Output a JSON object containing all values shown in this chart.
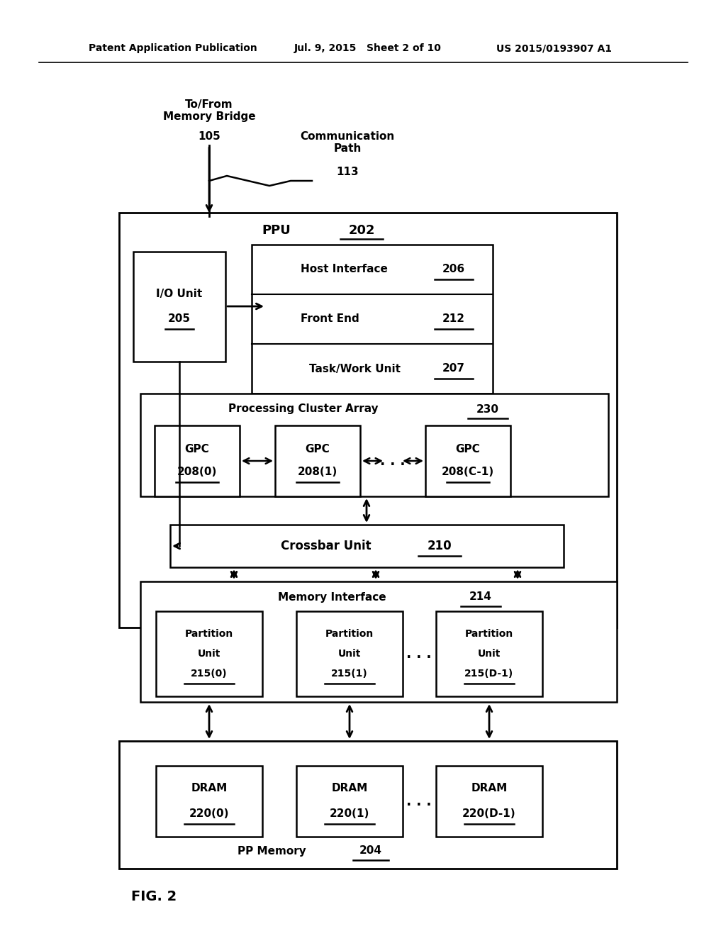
{
  "bg_color": "#ffffff",
  "header_left": "Patent Application Publication",
  "header_mid": "Jul. 9, 2015   Sheet 2 of 10",
  "header_right": "US 2015/0193907 A1",
  "fig_label": "FIG. 2",
  "to_from_text": "To/From\nMemory Bridge",
  "ref_105": "105",
  "comm_path_text": "Communication\nPath",
  "ref_113": "113",
  "ppu_label": "PPU",
  "ref_202": "202",
  "io_unit_line1": "I/O Unit",
  "io_unit_line2": "205",
  "host_iface_text": "Host Interface",
  "ref_206": "206",
  "front_end_text": "Front End",
  "ref_212": "212",
  "task_work_text": "Task/Work Unit",
  "ref_207": "207",
  "pca_label": "Processing Cluster Array",
  "ref_230": "230",
  "gpc0_line1": "GPC",
  "gpc0_line2": "208(0)",
  "gpc1_line1": "GPC",
  "gpc1_line2": "208(1)",
  "gpcC_line1": "GPC",
  "gpcC_line2": "208(C-1)",
  "crossbar_text": "Crossbar Unit",
  "ref_210": "210",
  "mi_label": "Memory Interface",
  "ref_214": "214",
  "part0_line1": "Partition",
  "part0_line2": "Unit",
  "part0_line3": "215(0)",
  "part1_line1": "Partition",
  "part1_line2": "Unit",
  "part1_line3": "215(1)",
  "partD_line1": "Partition",
  "partD_line2": "Unit",
  "partD_line3": "215(D-1)",
  "dram0_line1": "DRAM",
  "dram0_line2": "220(0)",
  "dram1_line1": "DRAM",
  "dram1_line2": "220(1)",
  "dramD_line1": "DRAM",
  "dramD_line2": "220(D-1)",
  "pp_memory_text": "PP Memory",
  "ref_204": "204"
}
